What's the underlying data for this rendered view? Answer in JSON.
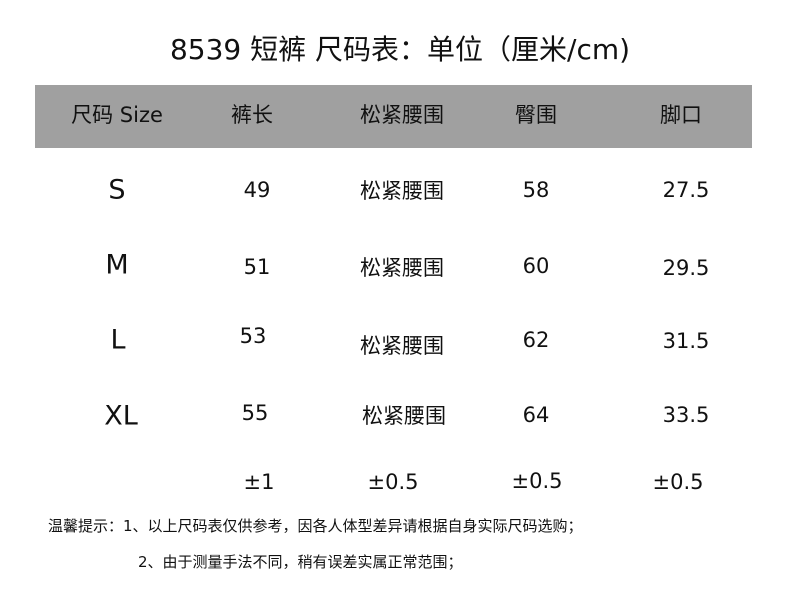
{
  "title": "8539 短裤  尺码表：单位（厘米/cm)",
  "headers": [
    "尺码 Size",
    "裤长",
    "松紧腰围",
    "臀围",
    "脚口"
  ],
  "rows": [
    {
      "size": "S",
      "length": "49",
      "waist": "松紧腰围",
      "hip": "58",
      "hem": "27.5"
    },
    {
      "size": "M",
      "length": "51",
      "waist": "松紧腰围",
      "hip": "60",
      "hem": "29.5"
    },
    {
      "size": "L",
      "length": "53",
      "waist": "松紧腰围",
      "hip": "62",
      "hem": "31.5"
    },
    {
      "size": "XL",
      "length": "55",
      "waist": "松紧腰围",
      "hip": "64",
      "hem": "33.5"
    }
  ],
  "tolerance": {
    "length": "±1",
    "waist": "±0.5",
    "hip": "±0.5",
    "hem": "±0.5"
  },
  "notes": {
    "line1": "温馨提示：1、以上尺码表仅供参考，因各人体型差异请根据自身实际尺码选购；",
    "line2": "2、由于测量手法不同，稍有误差实属正常范围；"
  },
  "colors": {
    "header_bg": "#a0a0a0"
  }
}
